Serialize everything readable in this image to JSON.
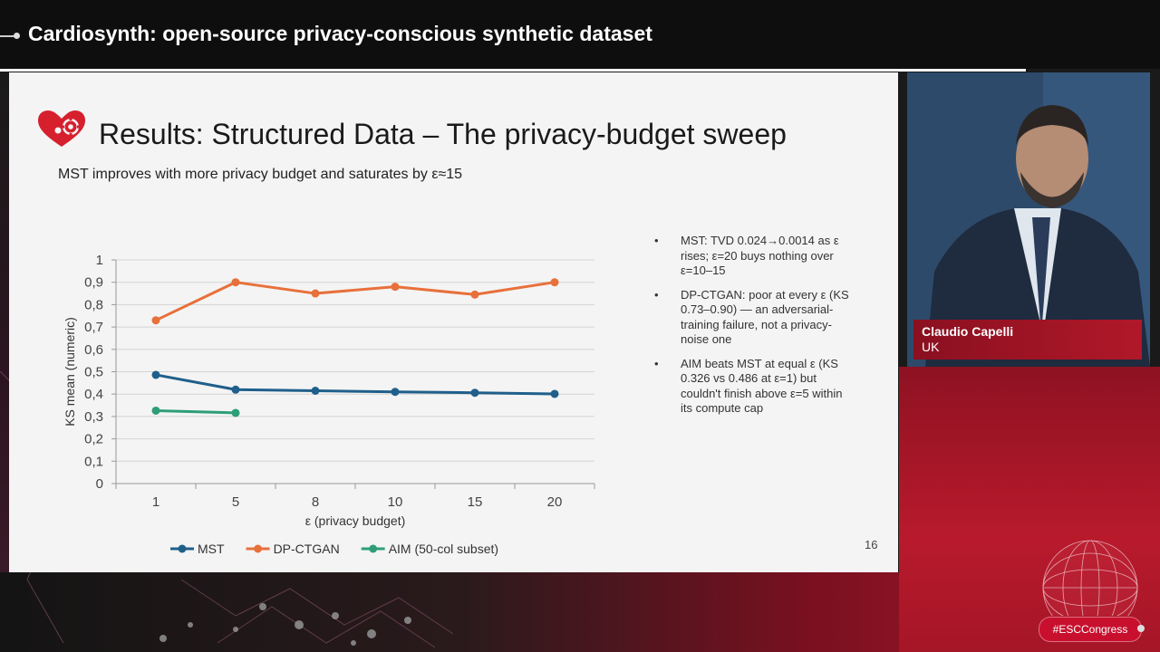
{
  "session": {
    "title": "Cardiosynth: open-source privacy-conscious synthetic dataset"
  },
  "slide": {
    "title": "Results: Structured Data – The privacy-budget sweep",
    "subtitle": "MST improves with more privacy budget and saturates by ε≈15",
    "page_number": "16",
    "bullets": [
      "MST: TVD 0.024→0.0014 as ε rises; ε=20 buys nothing over ε=10–15",
      "DP-CTGAN: poor at every ε (KS 0.73–0.90) — an adversarial-training failure, not a privacy-noise one",
      "AIM beats MST at equal ε (KS 0.326 vs 0.486 at ε=1) but couldn't finish above ε=5 within its compute cap"
    ],
    "bullet_symbol": "•"
  },
  "chart_data": {
    "type": "line",
    "title": "",
    "xlabel": "ε (privacy budget)",
    "ylabel": "KS mean (numeric)",
    "categories": [
      "1",
      "5",
      "8",
      "10",
      "15",
      "20"
    ],
    "ylim": [
      0,
      1
    ],
    "yticks": [
      "0",
      "0,1",
      "0,2",
      "0,3",
      "0,4",
      "0,5",
      "0,6",
      "0,7",
      "0,8",
      "0,9",
      "1"
    ],
    "grid": true,
    "legend_position": "bottom",
    "series": [
      {
        "name": "MST",
        "color": "#1f5f8b",
        "values": [
          0.486,
          0.42,
          0.415,
          0.41,
          0.406,
          0.401
        ]
      },
      {
        "name": "DP-CTGAN",
        "color": "#e8703a",
        "values": [
          0.73,
          0.9,
          0.85,
          0.88,
          0.845,
          0.9
        ]
      },
      {
        "name": "AIM (50-col subset)",
        "color": "#2e9e78",
        "values": [
          0.326,
          0.316,
          null,
          null,
          null,
          null
        ]
      }
    ]
  },
  "speaker": {
    "name": "Claudio Capelli",
    "country": "UK"
  },
  "hashtag": "#ESCCongress"
}
